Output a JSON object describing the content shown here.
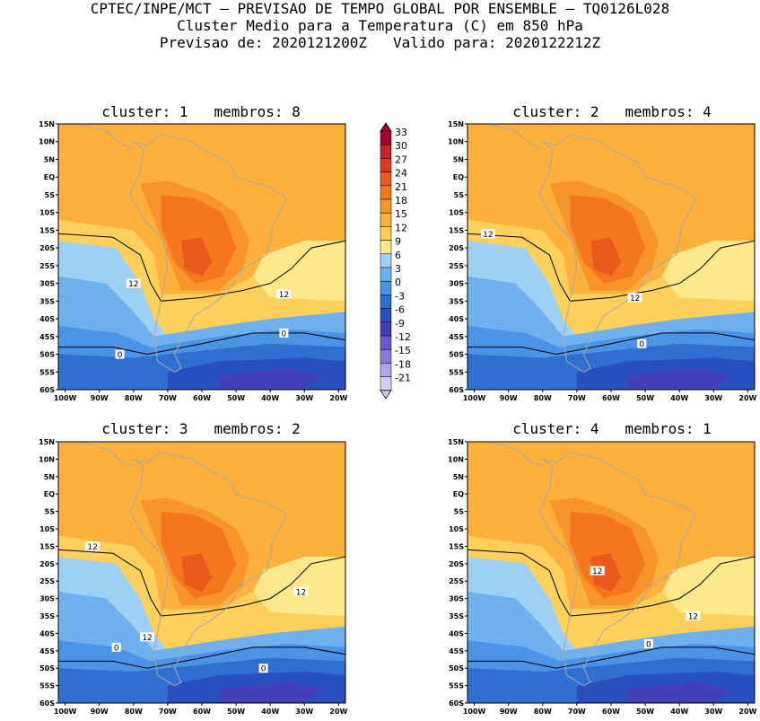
{
  "header": {
    "line1": "CPTEC/INPE/MCT – PREVISAO DE TEMPO GLOBAL POR ENSEMBLE – TQ0126L028",
    "line2": "Cluster Medio para a Temperatura (C) em 850 hPa",
    "line3": "Previsao de: 2020121200Z   Valido para: 2020122212Z"
  },
  "axes": {
    "lat_labels": [
      "15N",
      "10N",
      "5N",
      "EQ",
      "5S",
      "10S",
      "15S",
      "20S",
      "25S",
      "30S",
      "35S",
      "40S",
      "45S",
      "50S",
      "55S",
      "60S"
    ],
    "lon_labels": [
      "100W",
      "90W",
      "80W",
      "70W",
      "60W",
      "50W",
      "40W",
      "30W",
      "20W"
    ]
  },
  "colorbar": {
    "labels": [
      "33",
      "30",
      "27",
      "24",
      "21",
      "18",
      "15",
      "12",
      "9",
      "6",
      "3",
      "0",
      "-3",
      "-6",
      "-9",
      "-12",
      "-15",
      "-18",
      "-21"
    ],
    "colors": [
      "#a5002d",
      "#c4262d",
      "#dd3a22",
      "#ea5a1c",
      "#f5771d",
      "#f8952a",
      "#fdb13c",
      "#fdd05c",
      "#fde88c",
      "#9ecff5",
      "#6fb1ee",
      "#4b93e4",
      "#2f6fd0",
      "#2a50c0",
      "#4440b8",
      "#6a58cc",
      "#8c7ad8",
      "#b3a3e6",
      "#d6ccf2"
    ]
  },
  "panels": [
    {
      "title": "cluster: 1   membros: 8",
      "contour_labels": [
        {
          "text": "12",
          "lon": -80,
          "lat": -30
        },
        {
          "text": "12",
          "lon": -36,
          "lat": -33
        },
        {
          "text": "0",
          "lon": -36,
          "lat": -44
        },
        {
          "text": "0",
          "lon": -84,
          "lat": -50
        }
      ]
    },
    {
      "title": "cluster: 2   membros: 4",
      "contour_labels": [
        {
          "text": "12",
          "lon": -96,
          "lat": -16
        },
        {
          "text": "12",
          "lon": -53,
          "lat": -34
        },
        {
          "text": "0",
          "lon": -51,
          "lat": -47
        }
      ]
    },
    {
      "title": "cluster: 3   membros: 2",
      "contour_labels": [
        {
          "text": "12",
          "lon": -92,
          "lat": -15
        },
        {
          "text": "12",
          "lon": -31,
          "lat": -28
        },
        {
          "text": "12",
          "lon": -76,
          "lat": -41
        },
        {
          "text": "0",
          "lon": -85,
          "lat": -44
        },
        {
          "text": "0",
          "lon": -42,
          "lat": -50
        }
      ]
    },
    {
      "title": "cluster: 4   membros: 1",
      "contour_labels": [
        {
          "text": "12",
          "lon": -64,
          "lat": -22
        },
        {
          "text": "12",
          "lon": -36,
          "lat": -35
        },
        {
          "text": "0",
          "lon": -49,
          "lat": -43
        }
      ]
    }
  ]
}
